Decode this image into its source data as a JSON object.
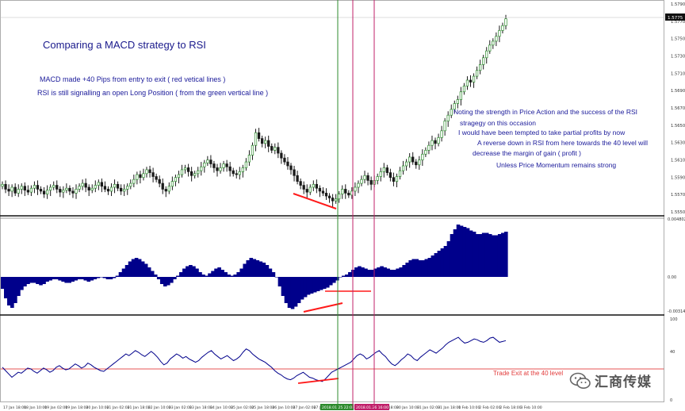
{
  "annotations": {
    "title": "Comparing a MACD strategy to RSI",
    "macd_note": "MACD made  +40 Pips from entry to exit ( red vetical lines )",
    "rsi_note": "RSI is still signalling an open Long Position  ( from the green vertical line )",
    "right_notes": [
      "Noting the strength in Price Action and the success of the RSI",
      "stragegy on this occasion",
      "I would have been tempted to take partial profits by now",
      "A reverse down in RSI from here towards  the 40 level will",
      "decrease the margin of gain ( profit )",
      "Unless Price Momentum remains strong"
    ],
    "trade_exit": "Trade Exit at the 40 level"
  },
  "watermark": "汇商传媒",
  "colors": {
    "candle": "#1a1a1a",
    "bull_candle": "#2e8b2e",
    "macd": "#00008b",
    "rsi": "#00008b",
    "level_line": "#e02020",
    "entry_line": "#2e8b2e",
    "exit_line": "#c0206a",
    "divergence": "#ff1a1a",
    "annotation_text": "#1a1a9a"
  },
  "chart_data": [
    {
      "type": "candlestick",
      "title": "",
      "y_ticks": [
        "1.5790",
        "1.5770",
        "1.5750",
        "1.5730",
        "1.5710",
        "1.5690",
        "1.5670",
        "1.5650",
        "1.5630",
        "1.5610",
        "1.5590",
        "1.5570",
        "1.5550"
      ],
      "last_price_label": "1.5775",
      "close": [
        1.5605,
        1.56,
        1.5598,
        1.5602,
        1.5596,
        1.56,
        1.5603,
        1.5599,
        1.5597,
        1.5601,
        1.5604,
        1.56,
        1.5598,
        1.5595,
        1.5599,
        1.5602,
        1.5604,
        1.56,
        1.5597,
        1.5599,
        1.5601,
        1.5598,
        1.5596,
        1.56,
        1.5603,
        1.5606,
        1.5602,
        1.5599,
        1.5601,
        1.5604,
        1.5607,
        1.5603,
        1.56,
        1.5598,
        1.5602,
        1.5605,
        1.5601,
        1.5598,
        1.56,
        1.5603,
        1.5606,
        1.561,
        1.5615,
        1.5612,
        1.5616,
        1.562,
        1.5617,
        1.5613,
        1.561,
        1.5606,
        1.56,
        1.5598,
        1.5603,
        1.5608,
        1.5612,
        1.5615,
        1.562,
        1.5622,
        1.5618,
        1.5614,
        1.5616,
        1.5619,
        1.5623,
        1.5627,
        1.563,
        1.5626,
        1.5622,
        1.5619,
        1.5622,
        1.5626,
        1.5623,
        1.5619,
        1.5616,
        1.5615,
        1.5618,
        1.5622,
        1.5628,
        1.5635,
        1.5645,
        1.5658,
        1.5652,
        1.5647,
        1.565,
        1.5644,
        1.564,
        1.5643,
        1.5637,
        1.5632,
        1.5628,
        1.5624,
        1.562,
        1.5614,
        1.5608,
        1.5604,
        1.56,
        1.5597,
        1.5602,
        1.5605,
        1.5601,
        1.5598,
        1.5596,
        1.5593,
        1.5591,
        1.5588,
        1.559,
        1.5595,
        1.56,
        1.5596,
        1.5594,
        1.5598,
        1.5602,
        1.5606,
        1.561,
        1.5614,
        1.5609,
        1.5605,
        1.5609,
        1.5613,
        1.5618,
        1.5622,
        1.5617,
        1.5612,
        1.5608,
        1.5613,
        1.5619,
        1.5624,
        1.5628,
        1.5633,
        1.5628,
        1.5625,
        1.563,
        1.5636,
        1.564,
        1.5645,
        1.565,
        1.5647,
        1.5653,
        1.566,
        1.567,
        1.5676,
        1.5682,
        1.5688,
        1.5692,
        1.57,
        1.5706,
        1.5712,
        1.571,
        1.5716,
        1.5722,
        1.5728,
        1.5735,
        1.5742,
        1.5748,
        1.5752,
        1.5757,
        1.5763,
        1.5768,
        1.5775
      ]
    },
    {
      "type": "bar",
      "title": "",
      "y_ticks": [
        "0.004802",
        "0.00",
        "-0.00314"
      ],
      "values": [
        -0.001,
        -0.0018,
        -0.0024,
        -0.0026,
        -0.0022,
        -0.0016,
        -0.0011,
        -0.0008,
        -0.0006,
        -0.0005,
        -0.0005,
        -0.0006,
        -0.0007,
        -0.0006,
        -0.0004,
        -0.0003,
        -0.0002,
        -0.0002,
        -0.0003,
        -0.0004,
        -0.0005,
        -0.0005,
        -0.0004,
        -0.0003,
        -0.0002,
        -0.0002,
        -0.0003,
        -0.0004,
        -0.0003,
        -0.0002,
        -0.0001,
        0.0,
        -0.0001,
        -0.0002,
        -0.0002,
        -0.0001,
        0.0001,
        0.0004,
        0.0007,
        0.001,
        0.0013,
        0.0015,
        0.0016,
        0.0015,
        0.0013,
        0.0011,
        0.0008,
        0.0005,
        0.0002,
        -0.0002,
        -0.0006,
        -0.0008,
        -0.0007,
        -0.0005,
        -0.0002,
        0.0001,
        0.0004,
        0.0007,
        0.0009,
        0.001,
        0.0009,
        0.0007,
        0.0004,
        0.0002,
        0.0001,
        0.0003,
        0.0005,
        0.0007,
        0.0008,
        0.0006,
        0.0004,
        0.0002,
        0.0001,
        0.0002,
        0.0004,
        0.0007,
        0.0011,
        0.0014,
        0.0016,
        0.0015,
        0.0014,
        0.0013,
        0.0012,
        0.001,
        0.0007,
        0.0004,
        0.0,
        -0.0008,
        -0.0016,
        -0.0022,
        -0.0026,
        -0.0027,
        -0.0025,
        -0.0022,
        -0.0019,
        -0.0017,
        -0.0015,
        -0.0014,
        -0.0013,
        -0.0012,
        -0.0011,
        -0.001,
        -0.0009,
        -0.0007,
        -0.0005,
        -0.0003,
        0.0,
        0.0001,
        0.0002,
        0.0004,
        0.0006,
        0.0008,
        0.0009,
        0.0008,
        0.0007,
        0.0006,
        0.0006,
        0.0007,
        0.0008,
        0.0009,
        0.0008,
        0.0007,
        0.0006,
        0.0006,
        0.0007,
        0.0008,
        0.001,
        0.0012,
        0.0014,
        0.0015,
        0.0015,
        0.0014,
        0.0014,
        0.0015,
        0.0016,
        0.0018,
        0.002,
        0.0022,
        0.0024,
        0.0026,
        0.003,
        0.0036,
        0.004,
        0.0044,
        0.0043,
        0.0042,
        0.0041,
        0.0039,
        0.0038,
        0.0036,
        0.0036,
        0.0037,
        0.0037,
        0.0036,
        0.0035,
        0.0035,
        0.0036,
        0.0037,
        0.0038
      ]
    },
    {
      "type": "line",
      "title": "",
      "y_ticks": [
        "100",
        "40",
        "0"
      ],
      "level": 40,
      "values": [
        42,
        38,
        34,
        30,
        33,
        36,
        35,
        38,
        41,
        40,
        37,
        35,
        38,
        41,
        39,
        36,
        38,
        42,
        44,
        41,
        39,
        40,
        43,
        46,
        44,
        41,
        43,
        47,
        45,
        42,
        40,
        38,
        37,
        40,
        43,
        46,
        49,
        52,
        55,
        58,
        56,
        59,
        62,
        60,
        57,
        55,
        58,
        61,
        58,
        54,
        49,
        45,
        47,
        52,
        55,
        58,
        56,
        53,
        55,
        52,
        50,
        48,
        50,
        54,
        57,
        60,
        62,
        58,
        55,
        52,
        54,
        56,
        53,
        50,
        52,
        55,
        60,
        64,
        62,
        58,
        55,
        52,
        50,
        48,
        45,
        42,
        38,
        35,
        33,
        30,
        28,
        27,
        29,
        32,
        34,
        36,
        33,
        30,
        29,
        27,
        26,
        25,
        28,
        32,
        36,
        38,
        40,
        42,
        44,
        46,
        48,
        52,
        56,
        58,
        56,
        52,
        54,
        57,
        60,
        62,
        58,
        55,
        50,
        46,
        44,
        47,
        51,
        54,
        58,
        56,
        52,
        50,
        54,
        57,
        60,
        63,
        61,
        59,
        62,
        65,
        69,
        72,
        74,
        76,
        78,
        74,
        71,
        72,
        74,
        76,
        75,
        73,
        72,
        74,
        77,
        78,
        75,
        72,
        73,
        74
      ]
    },
    {
      "type": "table",
      "title": "",
      "x_tick_labels": [
        "17 Jan 18:00",
        "18 Jan 10:00",
        "19 Jan 02:00",
        "19 Jan 18:00",
        "20 Jan 10:00",
        "21 Jan 02:00",
        "21 Jan 18:00",
        "22 Jan 10:00",
        "23 Jan 02:00",
        "23 Jan 18:00",
        "24 Jan 10:00",
        "25 Jan 02:00",
        "25 Jan 18:00",
        "26 Jan 10:00",
        "27 Jan 02:00",
        "27 Jan 18:00",
        "28 Jan 10:00",
        "29 Jan 02:00",
        "29 Jan 18:00",
        "30 Jan 10:00",
        "31 Jan 02:00",
        "31 Jan 18:00",
        "1 Feb 10:00",
        "2 Feb 02:00",
        "2 Feb 18:00",
        "3 Feb 10:00"
      ],
      "entry_marker_label": "2018.01.25 22:00",
      "exit_marker_label": "2018.01.26 16:00"
    }
  ]
}
